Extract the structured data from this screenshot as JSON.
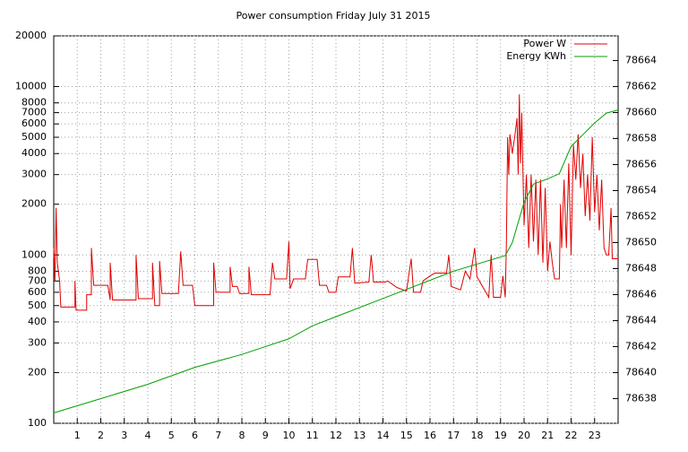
{
  "chart_data": {
    "type": "line",
    "title": "Power consumption Friday July 31 2015",
    "xlim": [
      0,
      24
    ],
    "xticks": [
      1,
      2,
      3,
      4,
      5,
      6,
      7,
      8,
      9,
      10,
      11,
      12,
      13,
      14,
      15,
      16,
      17,
      18,
      19,
      20,
      21,
      22,
      23
    ],
    "ylim": [
      100,
      20000
    ],
    "yticks": [
      100,
      200,
      300,
      400,
      500,
      600,
      700,
      800,
      1000,
      2000,
      3000,
      4000,
      5000,
      6000,
      7000,
      8000,
      10000,
      20000
    ],
    "y_log": true,
    "y2lim": [
      78636.1,
      78665.9
    ],
    "y2ticks": [
      78638,
      78640,
      78642,
      78644,
      78646,
      78648,
      78650,
      78652,
      78654,
      78656,
      78658,
      78660,
      78662,
      78664
    ],
    "grid": true,
    "legend": "top-right",
    "series": [
      {
        "name": "Power W",
        "color": "#e00000",
        "x": [
          0,
          0.05,
          0.1,
          0.15,
          0.25,
          0.3,
          0.9,
          0.9,
          0.95,
          1.4,
          1.4,
          1.6,
          1.6,
          1.7,
          2.3,
          2.4,
          2.4,
          2.5,
          3.5,
          3.5,
          3.6,
          4.2,
          4.2,
          4.3,
          4.5,
          4.5,
          4.6,
          5.3,
          5.4,
          5.5,
          5.9,
          6.0,
          6.8,
          6.8,
          6.9,
          7.5,
          7.5,
          7.6,
          7.8,
          7.9,
          8.3,
          8.3,
          8.4,
          9.2,
          9.3,
          9.4,
          9.9,
          10.0,
          10.05,
          10.2,
          10.7,
          10.8,
          11.2,
          11.3,
          11.6,
          11.7,
          12.0,
          12.1,
          12.6,
          12.7,
          12.8,
          13.4,
          13.5,
          13.6,
          14.1,
          14.2,
          14.6,
          15.0,
          15.2,
          15.3,
          15.6,
          15.7,
          16.0,
          16.2,
          16.7,
          16.8,
          16.9,
          17.3,
          17.5,
          17.7,
          17.9,
          18.0,
          18.5,
          18.6,
          18.7,
          19.0,
          19.1,
          19.2,
          19.25,
          19.3,
          19.35,
          19.4,
          19.5,
          19.6,
          19.7,
          19.75,
          19.8,
          19.85,
          19.9,
          20.0,
          20.1,
          20.2,
          20.3,
          20.4,
          20.5,
          20.6,
          20.7,
          20.8,
          20.9,
          21.0,
          21.1,
          21.2,
          21.3,
          21.5,
          21.55,
          21.6,
          21.7,
          21.8,
          21.9,
          22.0,
          22.1,
          22.2,
          22.3,
          22.4,
          22.5,
          22.6,
          22.7,
          22.8,
          22.9,
          23.0,
          23.1,
          23.2,
          23.3,
          23.4,
          23.5,
          23.6,
          23.7,
          23.75,
          24
        ],
        "values": [
          1100,
          700,
          1900,
          900,
          700,
          490,
          490,
          700,
          470,
          470,
          580,
          580,
          1100,
          660,
          660,
          540,
          900,
          540,
          540,
          1000,
          550,
          550,
          900,
          500,
          500,
          920,
          590,
          590,
          1050,
          660,
          660,
          500,
          500,
          900,
          600,
          600,
          850,
          650,
          650,
          590,
          590,
          850,
          580,
          580,
          900,
          720,
          720,
          1200,
          630,
          720,
          720,
          940,
          940,
          660,
          660,
          600,
          600,
          740,
          740,
          1100,
          680,
          690,
          1000,
          690,
          690,
          700,
          640,
          610,
          950,
          600,
          600,
          700,
          750,
          780,
          780,
          1000,
          650,
          620,
          800,
          720,
          1100,
          740,
          560,
          1000,
          560,
          560,
          750,
          560,
          1200,
          5000,
          3000,
          5200,
          4000,
          5000,
          6500,
          3000,
          9000,
          3500,
          7000,
          1500,
          3000,
          1100,
          3000,
          1200,
          2800,
          1000,
          2800,
          900,
          2500,
          800,
          1200,
          900,
          720,
          720,
          2000,
          1100,
          2800,
          1100,
          3500,
          1000,
          4500,
          2800,
          5200,
          2500,
          4000,
          1700,
          3000,
          1600,
          5000,
          1800,
          3000,
          1400,
          2800,
          1100,
          1000,
          1000,
          1900,
          950,
          950
        ]
      },
      {
        "name": "Energy KWh",
        "color": "#00a000",
        "axis": "y2",
        "x": [
          0,
          2,
          4,
          6,
          8,
          10,
          11,
          12,
          14,
          17,
          19.2,
          19.5,
          20,
          20.4,
          21,
          21.5,
          22,
          22.5,
          23,
          23.5,
          24
        ],
        "values": [
          78636.9,
          78638.0,
          78639.1,
          78640.4,
          78641.4,
          78642.6,
          78643.6,
          78644.3,
          78645.7,
          78647.8,
          78649.0,
          78650.0,
          78653.1,
          78654.5,
          78654.9,
          78655.3,
          78657.4,
          78658.3,
          78659.2,
          78659.96,
          78660.2
        ]
      }
    ]
  }
}
